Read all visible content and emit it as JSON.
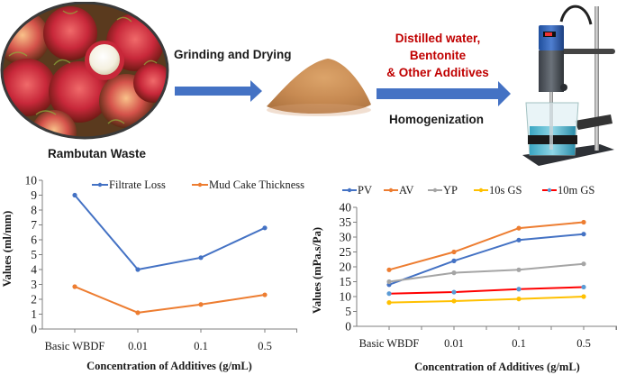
{
  "process": {
    "steps": [
      {
        "label": "Rambutan Waste",
        "image": "rambutan-fruit-photo"
      },
      {
        "label": "Grinding and Drying",
        "image": "brown-powder-photo"
      },
      {
        "label": "Homogenization",
        "image": "overhead-stirrer-beaker-photo"
      }
    ],
    "additives_label_lines": [
      "Distilled water,",
      "Bentonite",
      "& Other Additives"
    ],
    "colors": {
      "arrow": "#4472c4",
      "additives_text": "#c00000"
    }
  },
  "chart_data": [
    {
      "type": "line",
      "title": "",
      "xlabel": "Concentration of Additives (g/mL)",
      "ylabel": "Values (ml/mm)",
      "categories": [
        "Basic WBDF",
        "0.01",
        "0.1",
        "0.5"
      ],
      "ylim": [
        0,
        10
      ],
      "yticks": [
        0,
        1,
        2,
        3,
        4,
        5,
        6,
        7,
        8,
        9,
        10
      ],
      "grid": false,
      "legend_position": "top-right",
      "series": [
        {
          "name": "Filtrate Loss",
          "color": "#4472c4",
          "values": [
            9.0,
            4.0,
            4.8,
            6.8
          ]
        },
        {
          "name": "Mud Cake Thickness",
          "color": "#ed7d31",
          "values": [
            2.85,
            1.1,
            1.65,
            2.3
          ]
        }
      ]
    },
    {
      "type": "line",
      "title": "",
      "xlabel": "Concentration of Additives (g/mL)",
      "ylabel": "Values (mPa.s/Pa)",
      "categories": [
        "Basic WBDF",
        "0.01",
        "0.1",
        "0.5"
      ],
      "ylim": [
        0,
        40
      ],
      "yticks": [
        0,
        5,
        10,
        15,
        20,
        25,
        30,
        35,
        40
      ],
      "grid": false,
      "legend_position": "top",
      "series": [
        {
          "name": "PV",
          "color": "#4472c4",
          "marker_color": "#4472c4",
          "values": [
            14,
            22,
            29,
            31
          ]
        },
        {
          "name": "AV",
          "color": "#ed7d31",
          "marker_color": "#ed7d31",
          "values": [
            19,
            25,
            33,
            35
          ]
        },
        {
          "name": "YP",
          "color": "#a5a5a5",
          "marker_color": "#a5a5a5",
          "values": [
            15,
            18,
            19,
            21
          ]
        },
        {
          "name": "10s GS",
          "color": "#ffc000",
          "marker_color": "#ffc000",
          "values": [
            8,
            8.5,
            9.2,
            10
          ]
        },
        {
          "name": "10m GS",
          "color": "#ff0000",
          "marker_color": "#5b9bd5",
          "values": [
            11,
            11.5,
            12.5,
            13.2
          ]
        }
      ]
    }
  ]
}
